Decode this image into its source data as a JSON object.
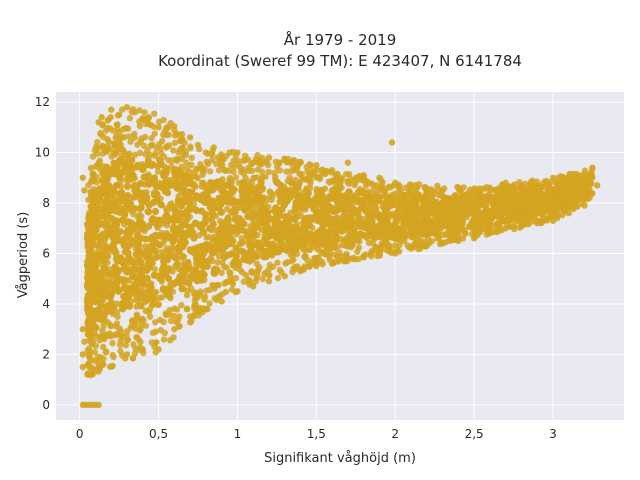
{
  "chart_data": {
    "type": "scatter",
    "title_lines": [
      "År 1979 - 2019",
      "Koordinat (Sweref 99 TM): E 423407, N 6141784"
    ],
    "xlabel": "Signifikant våghöjd (m)",
    "ylabel": "Vågperiod (s)",
    "xlim": [
      -0.15,
      3.45
    ],
    "ylim": [
      -0.6,
      12.4
    ],
    "x_ticks": [
      {
        "value": 0,
        "label": "0"
      },
      {
        "value": 0.5,
        "label": "0,5"
      },
      {
        "value": 1,
        "label": "1"
      },
      {
        "value": 1.5,
        "label": "1,5"
      },
      {
        "value": 2,
        "label": "2"
      },
      {
        "value": 2.5,
        "label": "2,5"
      },
      {
        "value": 3,
        "label": "3"
      }
    ],
    "y_ticks": [
      {
        "value": 0,
        "label": "0"
      },
      {
        "value": 2,
        "label": "2"
      },
      {
        "value": 4,
        "label": "4"
      },
      {
        "value": 6,
        "label": "6"
      },
      {
        "value": 8,
        "label": "8"
      },
      {
        "value": 10,
        "label": "10"
      },
      {
        "value": 12,
        "label": "12"
      }
    ],
    "grid": true,
    "marker_color": "#D4A421",
    "plot_background": "#E8E9F1",
    "series": [
      {
        "values_description": "dense cloud; upper envelope and lower envelope",
        "upper_envelope": [
          [
            0.05,
            9.0
          ],
          [
            0.15,
            11.5
          ],
          [
            0.3,
            11.8
          ],
          [
            0.5,
            11.6
          ],
          [
            0.75,
            10.3
          ],
          [
            1.0,
            10.0
          ],
          [
            1.3,
            9.8
          ],
          [
            1.6,
            9.3
          ],
          [
            2.0,
            8.8
          ],
          [
            2.5,
            8.6
          ],
          [
            3.0,
            9.0
          ],
          [
            3.25,
            9.4
          ]
        ],
        "lower_envelope": [
          [
            0.05,
            1.1
          ],
          [
            0.2,
            1.5
          ],
          [
            0.5,
            2.1
          ],
          [
            0.75,
            3.5
          ],
          [
            1.0,
            4.5
          ],
          [
            1.5,
            5.5
          ],
          [
            2.0,
            6.0
          ],
          [
            2.5,
            6.6
          ],
          [
            3.0,
            7.3
          ],
          [
            3.25,
            8.2
          ]
        ],
        "points": [
          [
            0.02,
            0.0
          ],
          [
            0.04,
            0.0
          ],
          [
            0.06,
            0.0
          ],
          [
            0.08,
            0.0
          ],
          [
            0.1,
            0.0
          ],
          [
            0.12,
            0.0
          ],
          [
            0.02,
            1.5
          ],
          [
            0.02,
            2.0
          ],
          [
            0.02,
            3.0
          ],
          [
            0.02,
            9.0
          ],
          [
            0.03,
            2.5
          ],
          [
            0.03,
            8.5
          ],
          [
            0.05,
            1.2
          ],
          [
            0.08,
            1.3
          ],
          [
            0.1,
            1.4
          ],
          [
            0.15,
            1.6
          ],
          [
            0.12,
            11.2
          ],
          [
            0.14,
            11.4
          ],
          [
            0.2,
            11.7
          ],
          [
            0.25,
            11.5
          ],
          [
            0.3,
            11.8
          ],
          [
            0.35,
            11.6
          ],
          [
            0.4,
            11.3
          ],
          [
            0.45,
            11.1
          ],
          [
            0.5,
            11.0
          ],
          [
            0.55,
            10.7
          ],
          [
            0.6,
            10.9
          ],
          [
            0.65,
            10.5
          ],
          [
            0.7,
            10.6
          ],
          [
            0.75,
            10.3
          ],
          [
            0.8,
            10.0
          ],
          [
            0.85,
            10.2
          ],
          [
            0.9,
            9.8
          ],
          [
            0.95,
            10.0
          ],
          [
            1.0,
            10.0
          ],
          [
            1.05,
            9.7
          ],
          [
            1.1,
            9.6
          ],
          [
            1.2,
            9.8
          ],
          [
            1.3,
            9.7
          ],
          [
            1.4,
            9.6
          ],
          [
            1.5,
            9.5
          ],
          [
            1.6,
            9.3
          ],
          [
            1.7,
            9.6
          ],
          [
            1.8,
            9.1
          ],
          [
            1.9,
            9.0
          ],
          [
            1.98,
            10.4
          ],
          [
            2.0,
            8.8
          ],
          [
            2.1,
            8.5
          ],
          [
            2.2,
            8.4
          ],
          [
            2.3,
            8.5
          ],
          [
            2.4,
            8.6
          ],
          [
            2.5,
            8.4
          ],
          [
            2.6,
            8.6
          ],
          [
            2.7,
            8.8
          ],
          [
            2.8,
            8.7
          ],
          [
            2.9,
            8.5
          ],
          [
            3.0,
            9.0
          ],
          [
            3.1,
            8.8
          ],
          [
            3.2,
            9.0
          ],
          [
            3.25,
            9.4
          ],
          [
            3.28,
            8.7
          ],
          [
            0.3,
            2.0
          ],
          [
            0.4,
            2.2
          ],
          [
            0.5,
            2.2
          ],
          [
            0.6,
            3.0
          ],
          [
            0.7,
            3.5
          ],
          [
            0.8,
            3.8
          ],
          [
            0.9,
            4.1
          ],
          [
            1.0,
            4.5
          ],
          [
            1.1,
            4.7
          ],
          [
            1.2,
            4.9
          ],
          [
            1.3,
            5.1
          ],
          [
            1.4,
            5.3
          ],
          [
            1.5,
            5.5
          ],
          [
            1.6,
            5.6
          ],
          [
            1.7,
            5.8
          ],
          [
            1.8,
            5.9
          ],
          [
            1.9,
            6.0
          ],
          [
            2.0,
            6.0
          ],
          [
            2.1,
            6.2
          ],
          [
            2.2,
            6.3
          ],
          [
            2.3,
            6.4
          ],
          [
            2.4,
            6.5
          ],
          [
            2.5,
            6.6
          ],
          [
            2.6,
            6.8
          ],
          [
            2.7,
            7.0
          ],
          [
            2.8,
            7.1
          ],
          [
            2.9,
            7.2
          ],
          [
            3.0,
            7.3
          ],
          [
            3.1,
            7.6
          ],
          [
            3.2,
            7.9
          ]
        ]
      }
    ]
  }
}
